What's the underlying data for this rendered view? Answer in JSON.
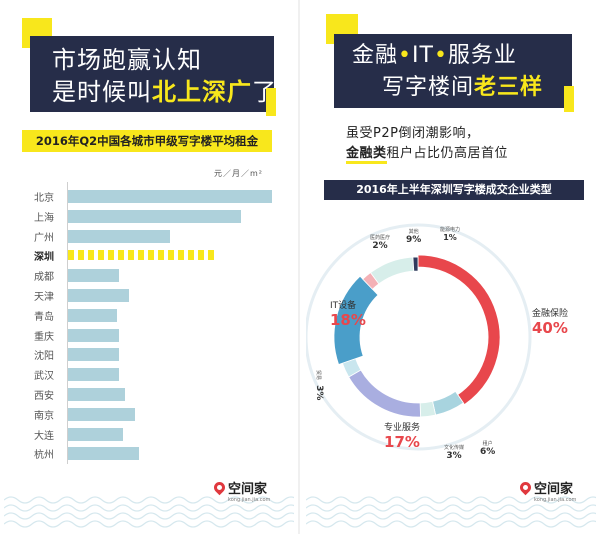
{
  "left": {
    "headline_line1": "市场跑赢认知",
    "headline_line2_a": "是时候叫",
    "headline_line2_b": "北上",
    "headline_line2_c": "深",
    "headline_line2_d": "广",
    "headline_line2_e": "了",
    "logo_name": "空间家",
    "logo_url": "kong.jian.jia.com"
  },
  "right": {
    "headline_line1_a": "金融",
    "headline_dot": "•",
    "headline_line1_b": "IT",
    "headline_line1_c": "服务业",
    "headline_line2_a": "写字楼间",
    "headline_line2_b": "老三样",
    "lead_line1": "虽受P2P倒闭潮影响，",
    "lead_line2_a": "金融类",
    "lead_line2_b": "租户占比仍高居首位",
    "logo_name": "空间家",
    "logo_url": "kong.jian.jia.com"
  },
  "colors": {
    "navy": "#262d49",
    "yellow": "#f8e71c",
    "bar_blue": "#aed1db",
    "finance_red": "#e8474c",
    "it_blue": "#4a9ec9",
    "service_purple": "#a9aee0",
    "accent_red": "#e0383e"
  },
  "chart_data": [
    {
      "type": "bar",
      "orientation": "horizontal",
      "title": "2016年Q2中国各城市甲级写字楼平均租金",
      "unit": "元／月／m²",
      "categories": [
        "北京",
        "上海",
        "广州",
        "深圳",
        "成都",
        "天津",
        "青岛",
        "重庆",
        "沈阳",
        "武汉",
        "西安",
        "南京",
        "大连",
        "杭州"
      ],
      "values": [
        100,
        85,
        50,
        72,
        25,
        30,
        24,
        25,
        25,
        25,
        28,
        33,
        27,
        35
      ],
      "highlight": "深圳",
      "xlabel": "",
      "ylabel": ""
    },
    {
      "type": "pie",
      "title": "2016年上半年深圳写字楼成交企业类型",
      "slices": [
        {
          "label": "金融保险",
          "value": 40
        },
        {
          "label": "租户",
          "value": 6
        },
        {
          "label": "文化传媒",
          "value": 3
        },
        {
          "label": "专业服务",
          "value": 17
        },
        {
          "label": "贸易",
          "value": 3
        },
        {
          "label": "IT设备",
          "value": 18
        },
        {
          "label": "医药医疗",
          "value": 2
        },
        {
          "label": "其他",
          "value": 9
        },
        {
          "label": "能源电力",
          "value": 1
        }
      ],
      "labels_display": {
        "finance": {
          "name": "金融保险",
          "pct": "40%"
        },
        "rent": {
          "name": "租户",
          "pct": "6%"
        },
        "culture": {
          "name": "文化传媒",
          "pct": "3%"
        },
        "service": {
          "name": "专业服务",
          "pct": "17%"
        },
        "trade": {
          "name": "贸易",
          "pct": "3%"
        },
        "it": {
          "name": "IT设备",
          "pct": "18%"
        },
        "medical": {
          "name": "医药医疗",
          "pct": "2%"
        },
        "other": {
          "name": "其他",
          "pct": "9%"
        },
        "energy": {
          "name": "能源电力",
          "pct": "1%"
        }
      }
    }
  ]
}
